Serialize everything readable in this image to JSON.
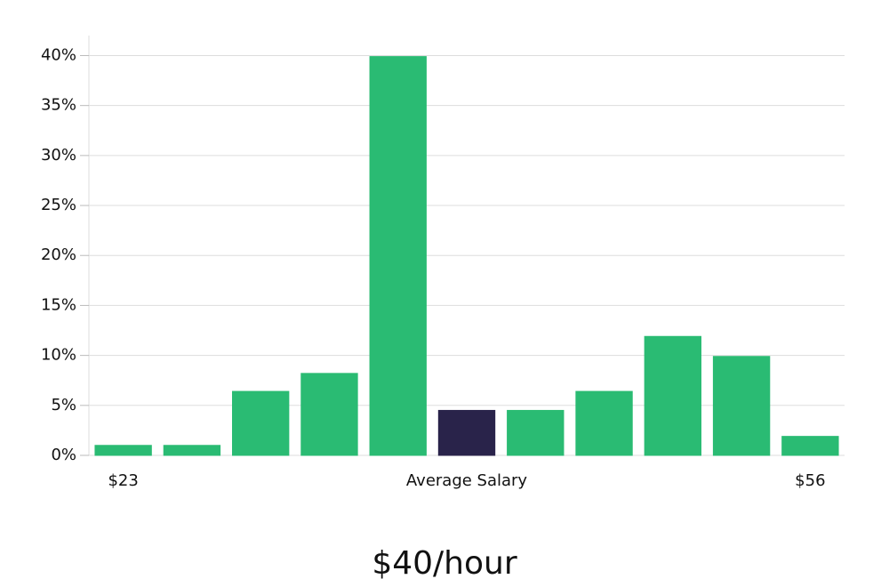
{
  "chart_data": {
    "type": "bar",
    "caption": "$40/hour",
    "categories": [
      "$23",
      null,
      null,
      null,
      null,
      "Average Salary",
      null,
      null,
      null,
      null,
      "$56"
    ],
    "values": [
      1.0,
      1.0,
      6.4,
      8.2,
      39.9,
      4.5,
      4.5,
      6.4,
      11.9,
      9.9,
      1.9
    ],
    "colors": [
      "#2abb73",
      "#2abb73",
      "#2abb73",
      "#2abb73",
      "#2abb73",
      "#29234a",
      "#2abb73",
      "#2abb73",
      "#2abb73",
      "#2abb73",
      "#2abb73"
    ],
    "ylim": [
      0,
      42
    ],
    "yticks": [
      {
        "value": 0,
        "label": "0%"
      },
      {
        "value": 5,
        "label": "5%"
      },
      {
        "value": 10,
        "label": "10%"
      },
      {
        "value": 15,
        "label": "15%"
      },
      {
        "value": 20,
        "label": "20%"
      },
      {
        "value": 25,
        "label": "25%"
      },
      {
        "value": 30,
        "label": "30%"
      },
      {
        "value": 35,
        "label": "35%"
      },
      {
        "value": 40,
        "label": "40%"
      }
    ],
    "grid": true
  }
}
